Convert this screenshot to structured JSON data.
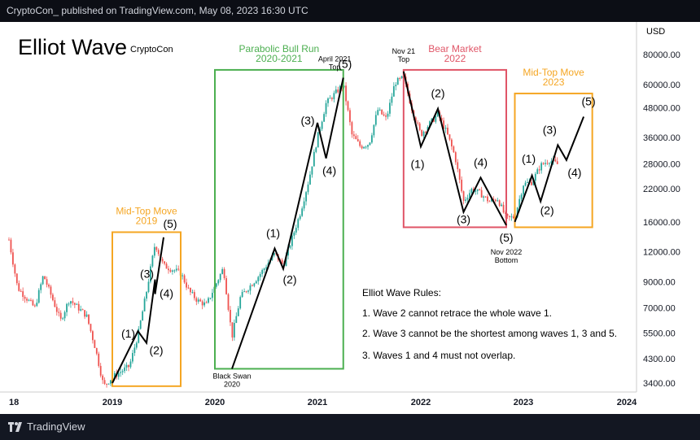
{
  "header": {
    "publish_line": "CryptoCon_ published on TradingView.com, May 08, 2023 16:30 UTC"
  },
  "footer": {
    "brand": "TradingView"
  },
  "chart_data": {
    "type": "candlestick",
    "title": "Elliot Wave",
    "author": "CryptoCon",
    "currency_label": "USD",
    "y_scale": "log",
    "y_ticks": [
      "80000.00",
      "60000.00",
      "48000.00",
      "36000.00",
      "28000.00",
      "22000.00",
      "16000.00",
      "12000.00",
      "9000.00",
      "7000.00",
      "5500.00",
      "4300.00",
      "3400.00"
    ],
    "x_ticks": [
      "18",
      "2019",
      "2020",
      "2021",
      "2022",
      "2023",
      "2024"
    ],
    "colors": {
      "up": "#26a69a",
      "down": "#ef5350",
      "green_box": "#4caf50",
      "red_box": "#e05567",
      "orange_box": "#f5a623",
      "wave_line": "#000000"
    },
    "boxes": [
      {
        "id": "mid2019",
        "title": "Mid-Top Move\n2019",
        "color": "orange",
        "from": "2019-01",
        "to": "2019-09",
        "low": 3300,
        "high": 14500
      },
      {
        "id": "bull",
        "title": "Parabolic Bull Run\n2020-2021",
        "color": "green",
        "from": "2020-01",
        "to": "2021-04",
        "low": 3900,
        "high": 69000
      },
      {
        "id": "bear",
        "title": "Bear Market\n2022",
        "color": "red",
        "from": "2021-11",
        "to": "2022-11",
        "low": 15200,
        "high": 69000
      },
      {
        "id": "mid2023",
        "title": "Mid-Top Move\n2023",
        "color": "orange",
        "from": "2022-12",
        "to": "2023-09",
        "low": 15200,
        "high": 55000
      }
    ],
    "wave_paths": [
      {
        "name": "2019 impulse",
        "points": [
          [
            "2019-01",
            3400
          ],
          [
            "2019-04",
            5600
          ],
          [
            "2019-05",
            5000
          ],
          [
            "2019-06",
            9200
          ],
          [
            "2019-06",
            8000
          ],
          [
            "2019-07",
            13800
          ]
        ],
        "labels": [
          "(1)",
          "(2)",
          "(3)",
          "(4)",
          "(5)"
        ]
      },
      {
        "name": "2020-2021 impulse",
        "points": [
          [
            "2020-03",
            3900
          ],
          [
            "2020-08",
            12400
          ],
          [
            "2020-09",
            10200
          ],
          [
            "2021-01",
            41500
          ],
          [
            "2021-02",
            29500
          ],
          [
            "2021-04",
            64000
          ]
        ],
        "labels": [
          "(1)",
          "(2)",
          "(3)",
          "(4)",
          "(5)"
        ]
      },
      {
        "name": "2022 decline",
        "points": [
          [
            "2021-11",
            68000
          ],
          [
            "2022-01",
            33000
          ],
          [
            "2022-03",
            47500
          ],
          [
            "2022-06",
            17600
          ],
          [
            "2022-08",
            24500
          ],
          [
            "2022-11",
            15500
          ]
        ],
        "labels": [
          "(1)",
          "(2)",
          "(3)",
          "(4)",
          "(5)"
        ]
      },
      {
        "name": "2023 projection",
        "points": [
          [
            "2022-12",
            16000
          ],
          [
            "2023-02",
            25000
          ],
          [
            "2023-03",
            19500
          ],
          [
            "2023-05",
            33500
          ],
          [
            "2023-06",
            29000
          ],
          [
            "2023-08",
            44000
          ]
        ],
        "labels": [
          "(1)",
          "(2)",
          "(3)",
          "(4)",
          "(5)"
        ]
      }
    ],
    "annotations": [
      "Black Swan\n2020",
      "April 2021\nTop",
      "Nov 21\nTop",
      "Nov 2022\nBottom"
    ],
    "rules_title": "Elliot Wave Rules:",
    "rules": [
      "1. Wave 2 cannot retrace the whole wave 1.",
      "2. Wave 3 cannot be the shortest among waves 1, 3 and 5.",
      "3. Waves 1 and 4 must not overlap."
    ]
  }
}
